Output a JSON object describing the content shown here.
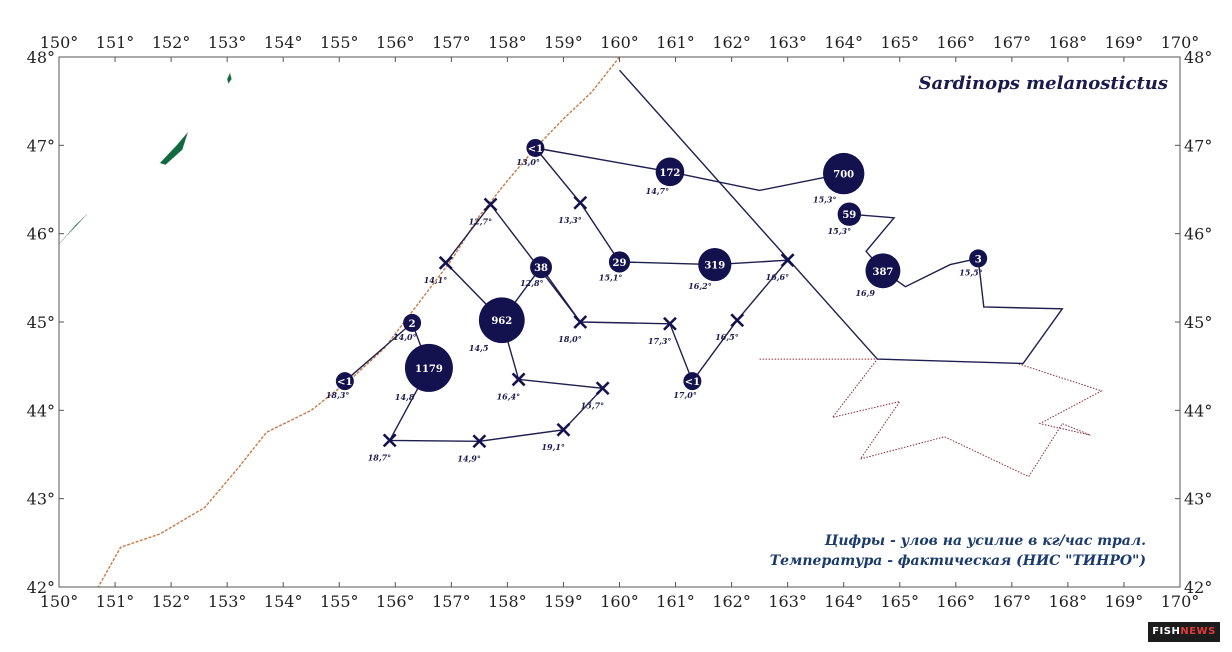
{
  "title": "Sardinops melanostictus",
  "legend": {
    "line1": "Цифры - улов на усилие в кг/час трал.",
    "line2": "Температура - фактическая (НИС \"ТИНРО\")"
  },
  "logo": {
    "part1": "FISH",
    "part2": "NEWS"
  },
  "axes": {
    "lon_labels": [
      "150°",
      "151°",
      "152°",
      "153°",
      "154°",
      "155°",
      "156°",
      "157°",
      "158°",
      "159°",
      "160°",
      "161°",
      "162°",
      "163°",
      "164°",
      "165°",
      "166°",
      "167°",
      "168°",
      "169°",
      "170°"
    ],
    "lat_labels": [
      "48°",
      "47°",
      "46°",
      "45°",
      "44°",
      "43°",
      "42°"
    ],
    "lon_range": [
      150,
      170
    ],
    "lat_range": [
      42,
      48
    ]
  },
  "colors": {
    "station": "#13124f",
    "route": "#1f1f4f",
    "coast": "#c97a45",
    "land": "#0f6b3d",
    "zone": "#8b2a3a"
  },
  "stations": [
    {
      "lon": 158.5,
      "lat": 46.97,
      "label": "<1",
      "catch": 0.5,
      "temp": "13,0°"
    },
    {
      "lon": 160.9,
      "lat": 46.7,
      "label": "172",
      "catch": 172,
      "temp": "14,7°"
    },
    {
      "lon": 164.0,
      "lat": 46.68,
      "label": "700",
      "catch": 700,
      "temp": "15,3°"
    },
    {
      "lon": 164.1,
      "lat": 46.22,
      "label": "59",
      "catch": 59,
      "temp": "15,3°"
    },
    {
      "lon": 164.7,
      "lat": 45.58,
      "label": "387",
      "catch": 387,
      "temp": "16,9"
    },
    {
      "lon": 166.4,
      "lat": 45.72,
      "label": "3",
      "catch": 3,
      "temp": "15,5°"
    },
    {
      "lon": 161.7,
      "lat": 45.65,
      "label": "319",
      "catch": 319,
      "temp": "16,2°"
    },
    {
      "lon": 160.0,
      "lat": 45.68,
      "label": "29",
      "catch": 29,
      "temp": "15,1°"
    },
    {
      "lon": 158.6,
      "lat": 45.62,
      "label": "38",
      "catch": 38,
      "temp": "12,8°"
    },
    {
      "lon": 157.9,
      "lat": 45.02,
      "label": "962",
      "catch": 962,
      "temp": "14,5"
    },
    {
      "lon": 156.3,
      "lat": 44.99,
      "label": "2",
      "catch": 2,
      "temp": "14,0°"
    },
    {
      "lon": 156.6,
      "lat": 44.48,
      "label": "1179",
      "catch": 1179,
      "temp": "14,8"
    },
    {
      "lon": 155.1,
      "lat": 44.33,
      "label": "<1",
      "catch": 0.5,
      "temp": "18,3°"
    },
    {
      "lon": 161.3,
      "lat": 44.33,
      "label": "<1",
      "catch": 0.5,
      "temp": "17,0°"
    }
  ],
  "cross_stations": [
    {
      "lon": 159.3,
      "lat": 46.35,
      "temp": "13,3°"
    },
    {
      "lon": 157.7,
      "lat": 46.33,
      "temp": "12,7°"
    },
    {
      "lon": 156.9,
      "lat": 45.67,
      "temp": "14,1°"
    },
    {
      "lon": 163.0,
      "lat": 45.7,
      "temp": "16,6°"
    },
    {
      "lon": 162.1,
      "lat": 45.02,
      "temp": "16,5°"
    },
    {
      "lon": 160.9,
      "lat": 44.98,
      "temp": "17,3°"
    },
    {
      "lon": 159.3,
      "lat": 45.0,
      "temp": "18,0°"
    },
    {
      "lon": 158.2,
      "lat": 44.35,
      "temp": "16,4°"
    },
    {
      "lon": 159.7,
      "lat": 44.25,
      "temp": "15,7°"
    },
    {
      "lon": 155.9,
      "lat": 43.66,
      "temp": "18,7°"
    },
    {
      "lon": 157.5,
      "lat": 43.65,
      "temp": "14,9°"
    },
    {
      "lon": 159.0,
      "lat": 43.78,
      "temp": "19,1°"
    }
  ],
  "route": [
    [
      [
        158.5,
        46.97
      ],
      [
        159.3,
        46.35
      ],
      [
        160.0,
        45.68
      ]
    ],
    [
      [
        158.5,
        46.97
      ],
      [
        160.9,
        46.7
      ],
      [
        162.5,
        46.49
      ],
      [
        164.0,
        46.68
      ]
    ],
    [
      [
        164.1,
        46.22
      ],
      [
        164.9,
        46.18
      ],
      [
        164.4,
        45.8
      ],
      [
        164.7,
        45.58
      ],
      [
        165.1,
        45.4
      ],
      [
        165.9,
        45.65
      ],
      [
        166.4,
        45.72
      ]
    ],
    [
      [
        160.0,
        45.68
      ],
      [
        161.7,
        45.65
      ],
      [
        163.0,
        45.7
      ],
      [
        162.1,
        45.02
      ],
      [
        161.3,
        44.33
      ],
      [
        160.9,
        44.98
      ],
      [
        159.3,
        45.0
      ],
      [
        157.7,
        46.33
      ],
      [
        156.9,
        45.67
      ],
      [
        157.9,
        45.02
      ],
      [
        158.2,
        44.35
      ],
      [
        159.7,
        44.25
      ]
    ],
    [
      [
        158.6,
        45.62
      ],
      [
        159.3,
        45.0
      ]
    ],
    [
      [
        157.9,
        45.02
      ],
      [
        158.6,
        45.62
      ]
    ],
    [
      [
        155.1,
        44.33
      ],
      [
        156.3,
        44.99
      ],
      [
        156.6,
        44.48
      ],
      [
        155.9,
        43.66
      ],
      [
        157.5,
        43.65
      ],
      [
        159.0,
        43.78
      ],
      [
        159.7,
        44.25
      ]
    ]
  ],
  "route_long": [
    [
      160.0,
      47.85
    ],
    [
      164.6,
      44.58
    ],
    [
      167.2,
      44.53
    ],
    [
      167.9,
      45.15
    ],
    [
      166.5,
      45.17
    ],
    [
      166.4,
      45.72
    ]
  ],
  "coastline": [
    [
      160.0,
      48.0
    ],
    [
      159.5,
      47.6
    ],
    [
      159.0,
      47.3
    ],
    [
      158.5,
      46.97
    ],
    [
      158.0,
      46.6
    ],
    [
      157.5,
      46.2
    ],
    [
      157.0,
      45.7
    ],
    [
      156.4,
      45.2
    ],
    [
      155.8,
      44.7
    ],
    [
      155.2,
      44.35
    ],
    [
      154.5,
      44.0
    ],
    [
      153.7,
      43.75
    ],
    [
      153.2,
      43.35
    ],
    [
      152.6,
      42.9
    ],
    [
      151.8,
      42.6
    ],
    [
      151.1,
      42.45
    ],
    [
      150.7,
      42.0
    ]
  ],
  "islands": [
    [
      [
        153.0,
        47.75
      ],
      [
        153.05,
        47.82
      ],
      [
        153.08,
        47.75
      ],
      [
        153.02,
        47.7
      ]
    ],
    [
      [
        151.8,
        46.8
      ],
      [
        152.1,
        47.0
      ],
      [
        152.3,
        47.15
      ],
      [
        152.2,
        46.95
      ],
      [
        151.9,
        46.78
      ]
    ],
    [
      [
        150.0,
        45.88
      ],
      [
        150.3,
        46.1
      ],
      [
        150.5,
        46.22
      ],
      [
        150.25,
        46.05
      ],
      [
        150.05,
        45.92
      ]
    ]
  ],
  "zone": [
    [
      162.5,
      44.58
    ],
    [
      164.6,
      44.58
    ],
    [
      163.8,
      43.92
    ],
    [
      165.0,
      44.1
    ],
    [
      164.3,
      43.45
    ],
    [
      165.8,
      43.7
    ],
    [
      167.3,
      43.25
    ],
    [
      167.9,
      43.85
    ],
    [
      168.4,
      43.72
    ],
    [
      167.5,
      43.85
    ],
    [
      168.6,
      44.22
    ],
    [
      167.1,
      44.53
    ]
  ]
}
